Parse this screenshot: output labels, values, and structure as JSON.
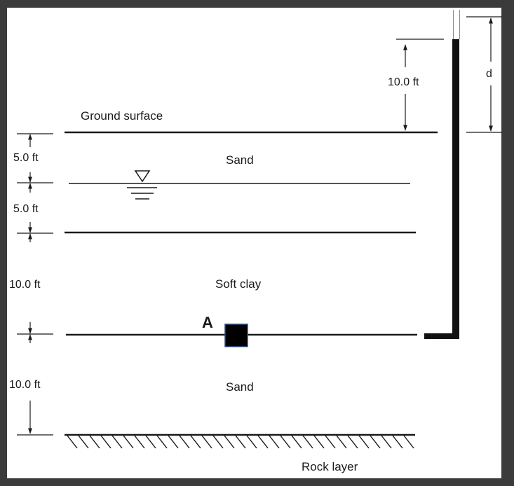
{
  "labels": {
    "ground_surface": "Ground surface",
    "layer1": "Sand",
    "layer2": "Soft clay",
    "layer3": "Sand",
    "rock": "Rock layer",
    "point": "A",
    "piezometer_height": "d"
  },
  "dimensions": {
    "above_ground": "10.0 ft",
    "sand_dry": "5.0 ft",
    "sand_sat": "5.0 ft",
    "clay": "10.0 ft",
    "sand_bottom": "10.0 ft"
  },
  "symbols": {
    "water_table": "inverted-triangle-icon"
  },
  "colors": {
    "frame": "#3b3b3b",
    "panel": "#ffffff",
    "ink": "#1a1a1a",
    "point_fill": "#000000",
    "point_border": "#2a4a80"
  }
}
